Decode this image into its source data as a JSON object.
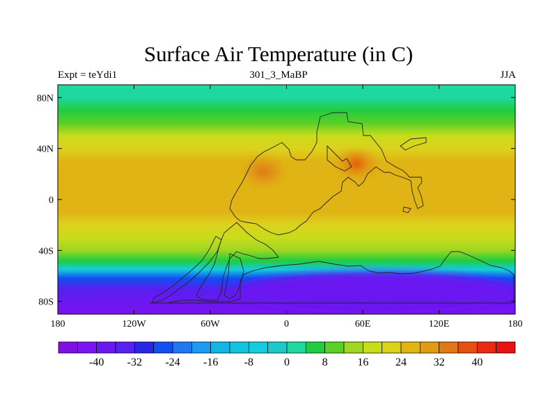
{
  "chart_data": {
    "type": "heatmap",
    "title": "Surface Air Temperature (in C)",
    "left_label": "Expt = teYdi1",
    "center_label": "301_3_MaBP",
    "right_label": "JJA",
    "units": "C",
    "x_axis": {
      "range": [
        -180,
        180
      ],
      "ticks": [
        -180,
        -120,
        -60,
        0,
        60,
        120,
        180
      ],
      "tick_labels": [
        "180",
        "120W",
        "60W",
        "0",
        "60E",
        "120E",
        "180"
      ]
    },
    "y_axis": {
      "range": [
        -90,
        90
      ],
      "ticks": [
        80,
        40,
        0,
        -40,
        -80
      ],
      "tick_labels": [
        "80N",
        "40N",
        "0",
        "40S",
        "80S"
      ]
    },
    "zonal_mean_profile": [
      {
        "lat": 90,
        "temp": 0
      },
      {
        "lat": 80,
        "temp": 1
      },
      {
        "lat": 70,
        "temp": 4
      },
      {
        "lat": 60,
        "temp": 10
      },
      {
        "lat": 50,
        "temp": 17
      },
      {
        "lat": 40,
        "temp": 22
      },
      {
        "lat": 30,
        "temp": 24
      },
      {
        "lat": 20,
        "temp": 26
      },
      {
        "lat": 10,
        "temp": 27
      },
      {
        "lat": 0,
        "temp": 27
      },
      {
        "lat": -10,
        "temp": 25
      },
      {
        "lat": -20,
        "temp": 22
      },
      {
        "lat": -30,
        "temp": 18
      },
      {
        "lat": -40,
        "temp": 12
      },
      {
        "lat": -48,
        "temp": 4
      },
      {
        "lat": -55,
        "temp": -8
      },
      {
        "lat": -62,
        "temp": -25
      },
      {
        "lat": -70,
        "temp": -35
      },
      {
        "lat": -80,
        "temp": -40
      },
      {
        "lat": -90,
        "temp": -42
      }
    ],
    "hot_spots": [
      {
        "lon": -18,
        "lat": 22,
        "temp": 34
      },
      {
        "lon": 55,
        "lat": 28,
        "temp": 36
      }
    ],
    "antarctic_cold_region": {
      "lon": [
        -40,
        180
      ],
      "lat": [
        -85,
        -55
      ],
      "temp": -40
    },
    "colorbar": {
      "levels": [
        -44,
        -40,
        -36,
        -32,
        -28,
        -24,
        -20,
        -16,
        -12,
        -8,
        -4,
        0,
        4,
        8,
        12,
        16,
        20,
        24,
        28,
        32,
        36,
        40,
        44
      ],
      "labels": [
        "-40",
        "-32",
        "-24",
        "-16",
        "-8",
        "0",
        "8",
        "16",
        "24",
        "32",
        "40"
      ],
      "colors": [
        "#8010e0",
        "#7a14f0",
        "#6a18f0",
        "#5520f0",
        "#2828e0",
        "#1050f0",
        "#1f78f0",
        "#1c9af0",
        "#14b4e6",
        "#12c4e0",
        "#14cce0",
        "#1ec8c8",
        "#1ed8a0",
        "#22cc40",
        "#5ad028",
        "#9ed622",
        "#c8dc1a",
        "#dcd21e",
        "#e0b414",
        "#e09a14",
        "#e07814",
        "#e55010",
        "#e82a10",
        "#e81010"
      ]
    }
  }
}
